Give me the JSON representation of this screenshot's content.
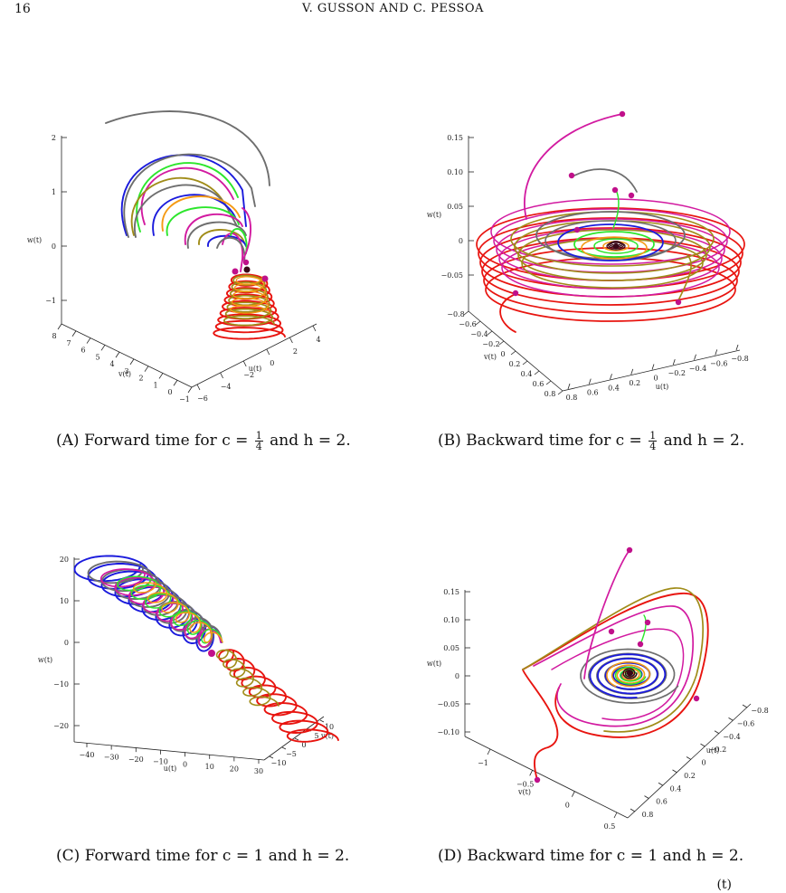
{
  "header": {
    "page_number": "16",
    "running_head": "V. GUSSON AND C. PESSOA"
  },
  "panels": [
    {
      "id": "a",
      "caption": {
        "tag": "(A)",
        "text_before": "Forward time for c =",
        "frac_num": "1",
        "frac_den": "4",
        "text_after": "and h = 2."
      },
      "labels": {
        "w": "w(t)",
        "u": "u(t)",
        "v": "v(t)"
      },
      "w_ticks": [
        "2",
        "1",
        "0",
        "−1"
      ],
      "v_ticks": [
        "8",
        "7",
        "6",
        "5",
        "4",
        "3",
        "2",
        "1",
        "0",
        "−1"
      ],
      "u_ticks": [
        "−6",
        "−4",
        "−2",
        "0",
        "2",
        "4"
      ]
    },
    {
      "id": "b",
      "caption": {
        "tag": "(B)",
        "text_before": "Backward time for c =",
        "frac_num": "1",
        "frac_den": "4",
        "text_after": "and h = 2."
      },
      "labels": {
        "w": "w(t)",
        "u": "u(t)",
        "v": "v(t)"
      },
      "w_ticks": [
        "0.15",
        "0.10",
        "0.05",
        "0",
        "−0.05"
      ],
      "v_ticks": [
        "−0.8",
        "−0.6",
        "−0.4",
        "−0.2",
        "0",
        "0.2",
        "0.4",
        "0.6",
        "0.8"
      ],
      "u_ticks": [
        "0.8",
        "0.6",
        "0.4",
        "0.2",
        "0",
        "−0.2",
        "−0.4",
        "−0.6",
        "−0.8"
      ]
    },
    {
      "id": "c",
      "caption": {
        "tag": "(C)",
        "text_before": "Forward time for c = 1 and h = 2.",
        "frac_num": "",
        "frac_den": "",
        "text_after": ""
      },
      "labels": {
        "w": "w(t)",
        "u": "u(t)",
        "v": "v(t)"
      },
      "w_ticks": [
        "20",
        "10",
        "0",
        "−10",
        "−20"
      ],
      "u_ticks": [
        "−40",
        "−30",
        "−20",
        "−10",
        "0",
        "10",
        "20",
        "30"
      ],
      "v_ticks": [
        "−10",
        "−5",
        "0",
        "5",
        "10"
      ]
    },
    {
      "id": "d",
      "caption": {
        "tag": "(D)",
        "text_before": "Backward time for c = 1 and h = 2.",
        "frac_num": "",
        "frac_den": "",
        "text_after": ""
      },
      "labels": {
        "w": "w(t)",
        "u": "u(t)",
        "v": "v(t)"
      },
      "w_ticks": [
        "0.15",
        "0.10",
        "0.05",
        "0",
        "−0.05",
        "−0.10"
      ],
      "v_ticks": [
        "−1",
        "−0.5",
        "0",
        "0.5"
      ],
      "u_ticks": [
        "−0.8",
        "−0.6",
        "−0.4",
        "−0.2",
        "0",
        "0.2",
        "0.4",
        "0.6",
        "0.8"
      ]
    }
  ],
  "colors": {
    "red": "#e8140f",
    "olive": "#a08c18",
    "blue": "#1a1adc",
    "gray": "#6e6e6e",
    "magenta": "#d21aa0",
    "green": "#2ce62c",
    "orange": "#f59a14",
    "dark": "#3a0818",
    "sphere": "#c0108a"
  },
  "footer": {
    "text": "(t)"
  }
}
